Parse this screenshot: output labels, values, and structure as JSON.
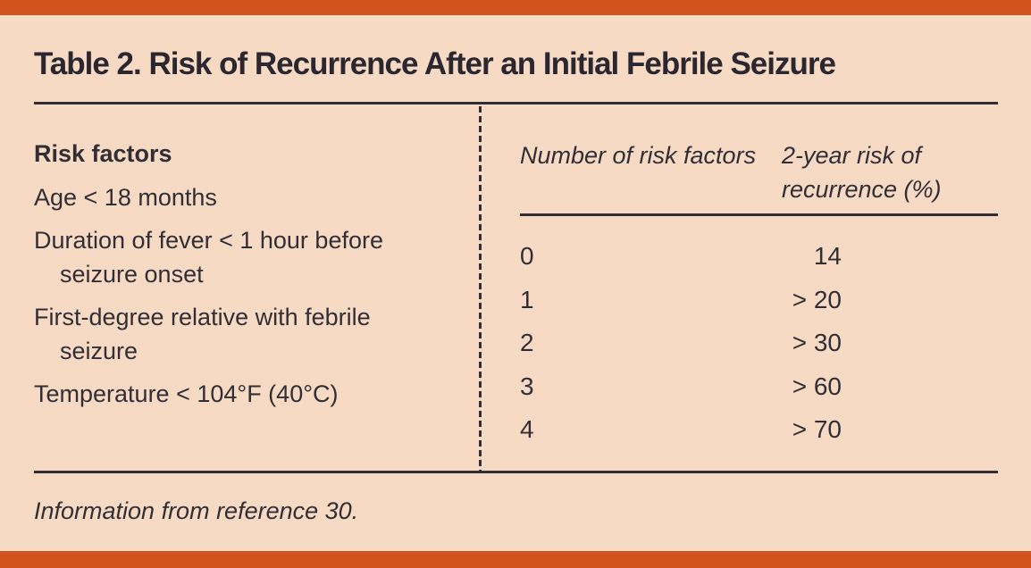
{
  "table": {
    "title": "Table 2. Risk of Recurrence After an Initial Febrile Seizure",
    "left": {
      "header": "Risk factors",
      "items": [
        "Age < 18 months",
        "Duration of fever < 1 hour before seizure onset",
        "First-degree relative with febrile seizure",
        "Temperature < 104°F (40°C)"
      ]
    },
    "right": {
      "col1_header": "Number of risk factors",
      "col2_header": "2-year risk of recurrence (%)",
      "rows": [
        {
          "factors": "0",
          "risk": "14"
        },
        {
          "factors": "1",
          "risk": "> 20"
        },
        {
          "factors": "2",
          "risk": "> 30"
        },
        {
          "factors": "3",
          "risk": "> 60"
        },
        {
          "factors": "4",
          "risk": "> 70"
        }
      ]
    },
    "footnote": "Information from reference 30."
  },
  "colors": {
    "accent_bar": "#D1521D",
    "background": "#F7DAC4",
    "ink": "#322E36"
  },
  "chart_data": {
    "type": "table",
    "title": "Table 2. Risk of Recurrence After an Initial Febrile Seizure",
    "columns": [
      "Number of risk factors",
      "2-year risk of recurrence (%)"
    ],
    "rows": [
      [
        "0",
        "14"
      ],
      [
        "1",
        "> 20"
      ],
      [
        "2",
        "> 30"
      ],
      [
        "3",
        "> 60"
      ],
      [
        "4",
        "> 70"
      ]
    ],
    "risk_factors": [
      "Age < 18 months",
      "Duration of fever < 1 hour before seizure onset",
      "First-degree relative with febrile seizure",
      "Temperature < 104°F (40°C)"
    ],
    "footnote": "Information from reference 30."
  }
}
